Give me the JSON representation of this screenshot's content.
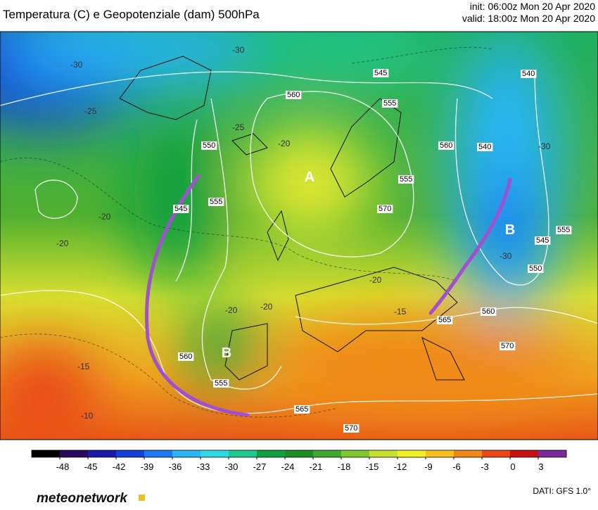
{
  "header": {
    "title": "Temperatura (C) e Geopotenziale (dam) 500hPa",
    "init": "init: 06:00z Mon 20 Apr 2020",
    "valid": "valid: 18:00z Mon 20 Apr 2020"
  },
  "map": {
    "pressure_centers": [
      "A",
      "B",
      "B"
    ],
    "height_labels": [
      545,
      560,
      550,
      555,
      545,
      555,
      570,
      560,
      555,
      540,
      545,
      555,
      550,
      560,
      565,
      570,
      560,
      555,
      565,
      570,
      540
    ],
    "temperature_labels": [
      -30,
      -30,
      -25,
      -20,
      -20,
      -20,
      -20,
      -15,
      -15,
      -10,
      -25,
      -30,
      -20,
      -30,
      -20
    ]
  },
  "colorbar": {
    "ticks": [
      -48,
      -45,
      -42,
      -39,
      -36,
      -33,
      -30,
      -27,
      -24,
      -21,
      -18,
      -15,
      -12,
      -9,
      -6,
      -3,
      0,
      3
    ],
    "colors": [
      "#000000",
      "#2a0a5e",
      "#1a1aa8",
      "#1540d8",
      "#1e78f0",
      "#28b4f5",
      "#30d8e0",
      "#20c890",
      "#10a040",
      "#1c8c24",
      "#40a830",
      "#80c830",
      "#c8e030",
      "#f0f028",
      "#f8c020",
      "#f08818",
      "#e84818",
      "#c81010",
      "#7a2a9a"
    ]
  },
  "footer": {
    "logo": "meteonetwork",
    "source": "DATI: GFS 1.0°"
  }
}
